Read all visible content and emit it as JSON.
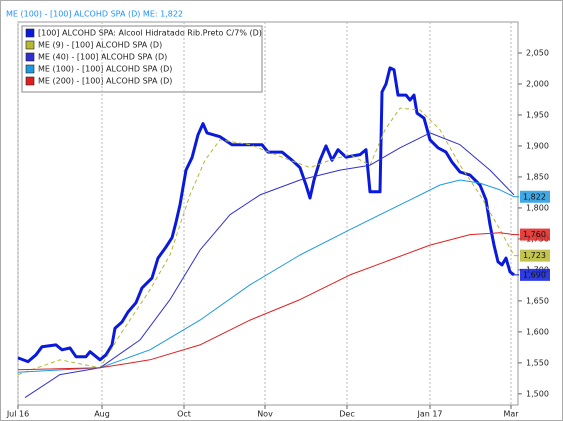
{
  "chart_data": {
    "type": "line",
    "header": "ME (100)  - [100] ALCOHD SPA (D)  ME: 1,822",
    "xlim": [
      0,
      100
    ],
    "xticks": [
      {
        "value": 0,
        "label": "Jul 16"
      },
      {
        "value": 16.8,
        "label": "Aug"
      },
      {
        "value": 33.2,
        "label": "Oct"
      },
      {
        "value": 49.4,
        "label": "Nov"
      },
      {
        "value": 65.8,
        "label": "Dec"
      },
      {
        "value": 82.4,
        "label": "Jan 17"
      },
      {
        "value": 98.6,
        "label": "Mar"
      }
    ],
    "ylim": [
      1482,
      2100
    ],
    "yticks": [
      {
        "value": 1500,
        "label": "1,500"
      },
      {
        "value": 1550,
        "label": "1,550"
      },
      {
        "value": 1600,
        "label": "1,600"
      },
      {
        "value": 1650,
        "label": "1,650"
      },
      {
        "value": 1700,
        "label": "1,700"
      },
      {
        "value": 1750,
        "label": "1,750"
      },
      {
        "value": 1800,
        "label": "1,800"
      },
      {
        "value": 1850,
        "label": "1,850"
      },
      {
        "value": 1900,
        "label": "1,900"
      },
      {
        "value": 1950,
        "label": "1,950"
      },
      {
        "value": 2000,
        "label": "2,000"
      },
      {
        "value": 2050,
        "label": "2,050"
      }
    ],
    "grid": "x",
    "legend": "upper left",
    "series": [
      {
        "name": "[100] ALCOHD SPA: Alcool Hidratado Rib.Preto C/7%    (D)",
        "color": "#0a1adc",
        "line_width": 3,
        "dash": false,
        "tag": "1,690",
        "x": [
          0,
          2,
          3.6,
          4.8,
          7.6,
          8.8,
          10.4,
          11.6,
          13.6,
          14.4,
          16.4,
          17.6,
          18.8,
          19.4,
          20.8,
          22,
          23.6,
          24.8,
          26.8,
          28,
          29.6,
          30.8,
          31.6,
          32.4,
          33.6,
          34.8,
          36,
          37,
          37.8,
          40.4,
          42.8,
          48.8,
          50,
          52.8,
          54.8,
          56.4,
          57.6,
          58.4,
          59.2,
          60.4,
          61.6,
          62.8,
          64,
          65.6,
          68.4,
          69.6,
          70.4,
          72.4,
          72.8,
          73.6,
          74.4,
          75.2,
          76,
          77.6,
          78.4,
          79.2,
          79.8,
          81.2,
          82.4,
          84,
          85.6,
          86.8,
          88.4,
          90.4,
          92.4,
          93.6,
          94.4,
          95.2,
          96,
          96.8,
          97.6,
          98.4,
          99.2
        ],
        "values": [
          1558,
          1552,
          1563,
          1576,
          1579,
          1571,
          1574,
          1560,
          1560,
          1568,
          1555,
          1563,
          1579,
          1606,
          1616,
          1632,
          1647,
          1671,
          1687,
          1719,
          1737,
          1752,
          1777,
          1805,
          1861,
          1881,
          1918,
          1936,
          1921,
          1915,
          1902,
          1902,
          1890,
          1890,
          1877,
          1865,
          1837,
          1816,
          1845,
          1877,
          1900,
          1877,
          1894,
          1882,
          1886,
          1894,
          1826,
          1826,
          1987,
          2000,
          2026,
          2023,
          1982,
          1982,
          1974,
          1982,
          1953,
          1945,
          1910,
          1897,
          1890,
          1874,
          1858,
          1853,
          1837,
          1813,
          1773,
          1740,
          1713,
          1708,
          1719,
          1697,
          1692
        ]
      },
      {
        "name": "ME (9)  - [100] ALCOHD SPA (D)",
        "color": "#b8b830",
        "line_width": 1,
        "dash": true,
        "tag": "1,723",
        "x": [
          0,
          8.4,
          16.4,
          20.4,
          26.4,
          30.4,
          34.4,
          37.4,
          40.4,
          46.4,
          54.4,
          58.4,
          62.4,
          66.4,
          70.4,
          73.4,
          76.4,
          80.4,
          84.4,
          88.4,
          92.4,
          96.4,
          99.2
        ],
        "values": [
          1531,
          1555,
          1542,
          1595,
          1668,
          1724,
          1821,
          1877,
          1910,
          1902,
          1877,
          1865,
          1877,
          1886,
          1869,
          1926,
          1961,
          1958,
          1926,
          1869,
          1821,
          1765,
          1723
        ]
      },
      {
        "name": "ME (40)  - [100] ALCOHD SPA (D)",
        "color": "#3030d0",
        "line_width": 1,
        "dash": false,
        "tag": null,
        "x": [
          1.4,
          8.4,
          16.4,
          24.4,
          30.4,
          36.4,
          42.4,
          48.4,
          56.4,
          64.4,
          70.4,
          76.4,
          82.4,
          88.4,
          94.4,
          99.2
        ],
        "values": [
          1494,
          1531,
          1542,
          1587,
          1652,
          1732,
          1789,
          1821,
          1845,
          1861,
          1869,
          1897,
          1921,
          1902,
          1861,
          1821
        ]
      },
      {
        "name": "ME (100)  - [100] ALCOHD SPA (D)",
        "color": "#1e9ae0",
        "line_width": 1,
        "dash": false,
        "tag": "1,822",
        "x": [
          0,
          16.4,
          26.4,
          36.4,
          46.4,
          56.4,
          66.4,
          72.4,
          78.4,
          84.4,
          88.4,
          92.4,
          96.4,
          99.2
        ],
        "values": [
          1535,
          1542,
          1571,
          1619,
          1676,
          1724,
          1765,
          1789,
          1813,
          1837,
          1845,
          1840,
          1829,
          1818
        ]
      },
      {
        "name": "ME (200)  - [100] ALCOHD SPA (D)",
        "color": "#e02020",
        "line_width": 1,
        "dash": false,
        "tag": "1,760",
        "x": [
          0,
          16.4,
          26.4,
          36.4,
          46.4,
          56.4,
          66.4,
          74.4,
          82.4,
          90.4,
          96.4,
          99.2
        ],
        "values": [
          1539,
          1542,
          1555,
          1579,
          1619,
          1652,
          1692,
          1716,
          1740,
          1757,
          1760,
          1757
        ]
      }
    ]
  }
}
